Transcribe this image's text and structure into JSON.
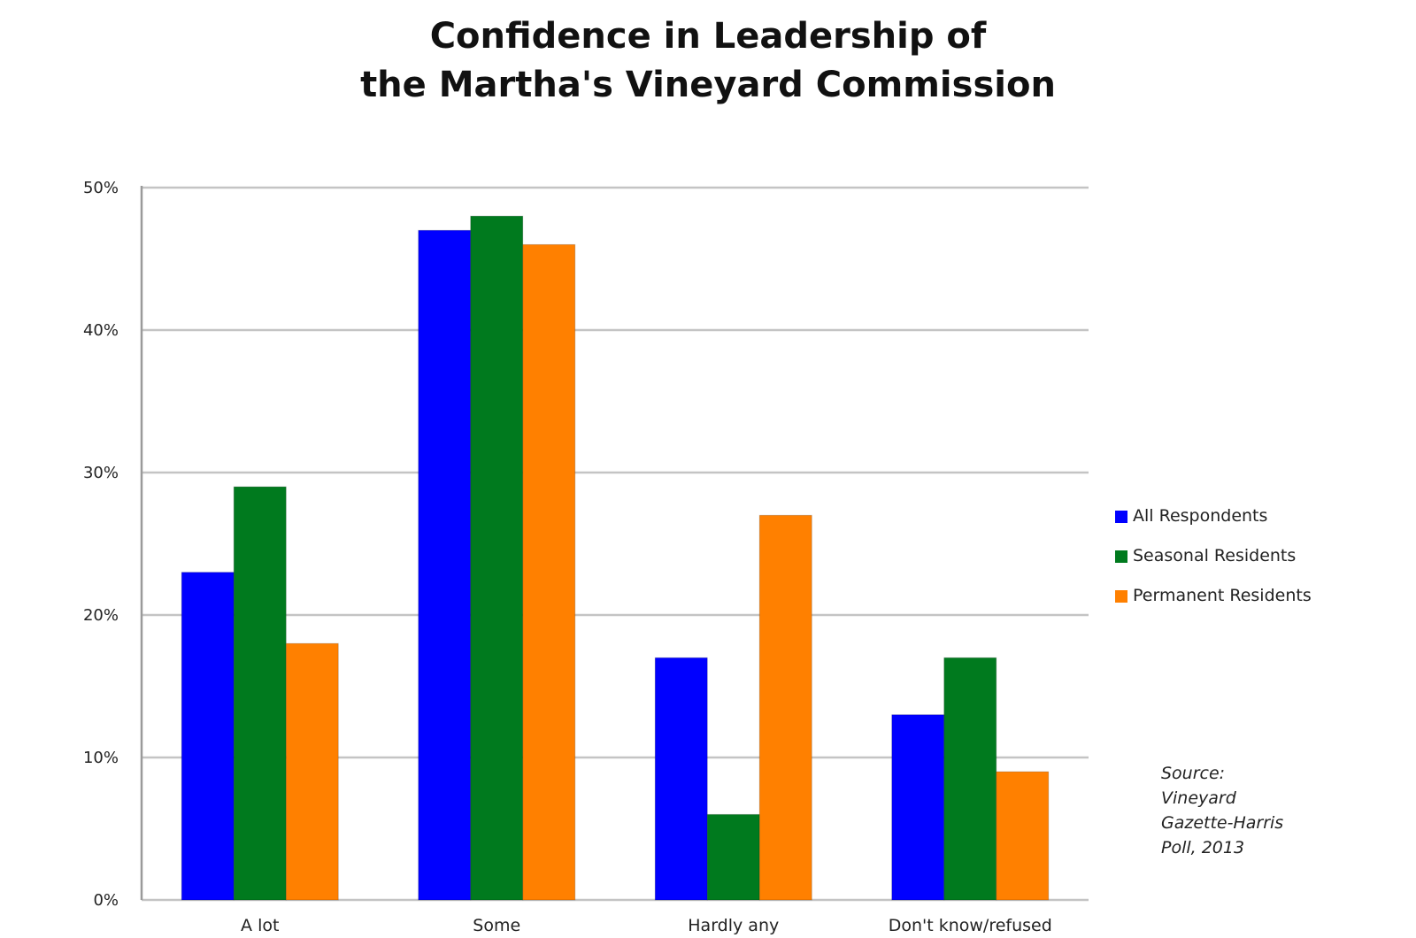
{
  "chart_data": {
    "type": "bar",
    "title_line1": "Confidence in Leadership of",
    "title_line2": "the Martha's Vineyard Commission",
    "categories": [
      "A lot",
      "Some",
      "Hardly any",
      "Don't know/refused"
    ],
    "series": [
      {
        "name": "All Respondents",
        "color": "#0000ff",
        "values": [
          23,
          47,
          17,
          13
        ]
      },
      {
        "name": "Seasonal Residents",
        "color": "#007a1e",
        "values": [
          29,
          48,
          6,
          17
        ]
      },
      {
        "name": "Permanent Residents",
        "color": "#ff8000",
        "values": [
          18,
          46,
          27,
          9
        ]
      }
    ],
    "yticks": [
      "0%",
      "10%",
      "20%",
      "30%",
      "40%",
      "50%"
    ],
    "ylim": [
      0,
      50
    ],
    "grid": true,
    "legend_position": "right",
    "source_lines": [
      "Source:",
      "Vineyard",
      "Gazette-Harris",
      "Poll, 2013"
    ]
  }
}
